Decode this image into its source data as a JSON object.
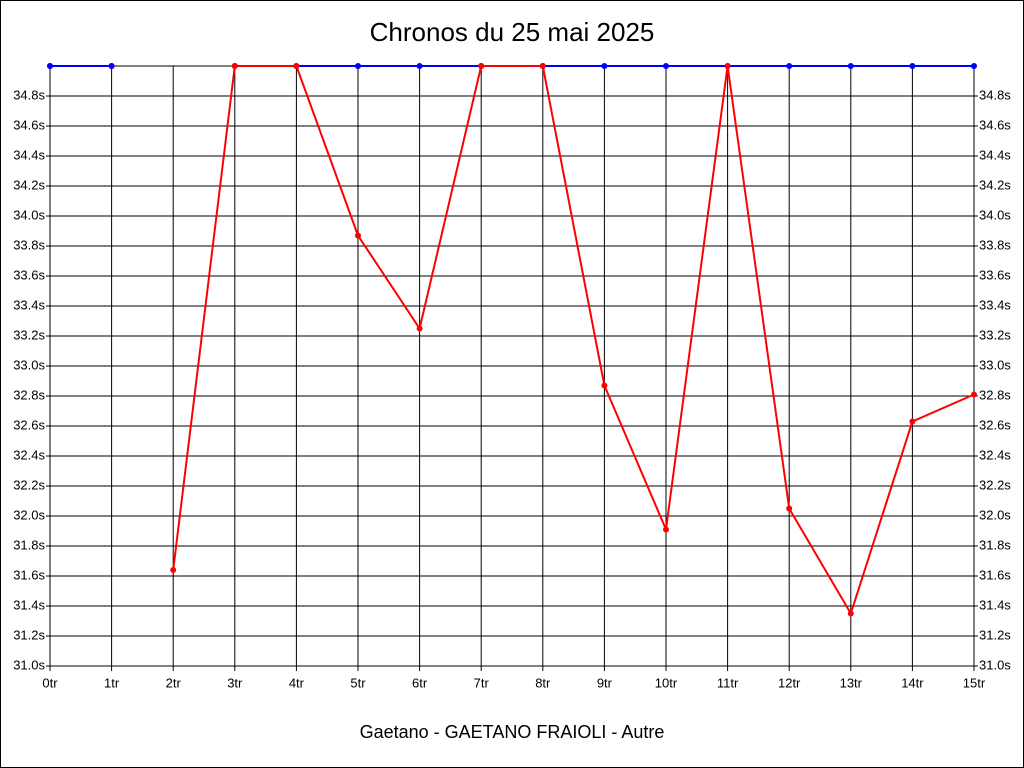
{
  "chart_data": {
    "type": "line",
    "title": "Chronos du 25 mai 2025",
    "xlabel": "Gaetano - GAETANO FRAIOLI - Autre",
    "x": [
      0,
      1,
      2,
      3,
      4,
      5,
      6,
      7,
      8,
      9,
      10,
      11,
      12,
      13,
      14,
      15
    ],
    "xlim": [
      0,
      15
    ],
    "xticks": [
      {
        "value": 0,
        "label": "0tr"
      },
      {
        "value": 1,
        "label": "1tr"
      },
      {
        "value": 2,
        "label": "2tr"
      },
      {
        "value": 3,
        "label": "3tr"
      },
      {
        "value": 4,
        "label": "4tr"
      },
      {
        "value": 5,
        "label": "5tr"
      },
      {
        "value": 6,
        "label": "6tr"
      },
      {
        "value": 7,
        "label": "7tr"
      },
      {
        "value": 8,
        "label": "8tr"
      },
      {
        "value": 9,
        "label": "9tr"
      },
      {
        "value": 10,
        "label": "10tr"
      },
      {
        "value": 11,
        "label": "11tr"
      },
      {
        "value": 12,
        "label": "12tr"
      },
      {
        "value": 13,
        "label": "13tr"
      },
      {
        "value": 14,
        "label": "14tr"
      },
      {
        "value": 15,
        "label": "15tr"
      }
    ],
    "ylim": [
      31.0,
      35.0
    ],
    "yticks": [
      {
        "value": 31.0,
        "label": "31.0s"
      },
      {
        "value": 31.2,
        "label": "31.2s"
      },
      {
        "value": 31.4,
        "label": "31.4s"
      },
      {
        "value": 31.6,
        "label": "31.6s"
      },
      {
        "value": 31.8,
        "label": "31.8s"
      },
      {
        "value": 32.0,
        "label": "32.0s"
      },
      {
        "value": 32.2,
        "label": "32.2s"
      },
      {
        "value": 32.4,
        "label": "32.4s"
      },
      {
        "value": 32.6,
        "label": "32.6s"
      },
      {
        "value": 32.8,
        "label": "32.8s"
      },
      {
        "value": 33.0,
        "label": "33.0s"
      },
      {
        "value": 33.2,
        "label": "33.2s"
      },
      {
        "value": 33.4,
        "label": "33.4s"
      },
      {
        "value": 33.6,
        "label": "33.6s"
      },
      {
        "value": 33.8,
        "label": "33.8s"
      },
      {
        "value": 34.0,
        "label": "34.0s"
      },
      {
        "value": 34.2,
        "label": "34.2s"
      },
      {
        "value": 34.4,
        "label": "34.4s"
      },
      {
        "value": 34.6,
        "label": "34.6s"
      },
      {
        "value": 34.8,
        "label": "34.8s"
      }
    ],
    "grid": true,
    "series": [
      {
        "color": "#ff0000",
        "values": [
          35,
          35,
          null,
          null,
          null,
          null,
          null,
          null,
          null,
          null,
          null,
          null,
          null,
          null,
          null,
          null
        ]
      },
      {
        "color": "#0000ff",
        "values": [
          35,
          35,
          null,
          35,
          35,
          35,
          35,
          35,
          35,
          35,
          35,
          35,
          35,
          35,
          35,
          35
        ]
      },
      {
        "color": "#ff0000",
        "values": [
          null,
          null,
          31.64,
          35,
          35,
          33.87,
          33.25,
          35,
          35,
          32.87,
          31.91,
          35,
          32.05,
          31.35,
          32.63,
          32.81
        ]
      }
    ]
  }
}
